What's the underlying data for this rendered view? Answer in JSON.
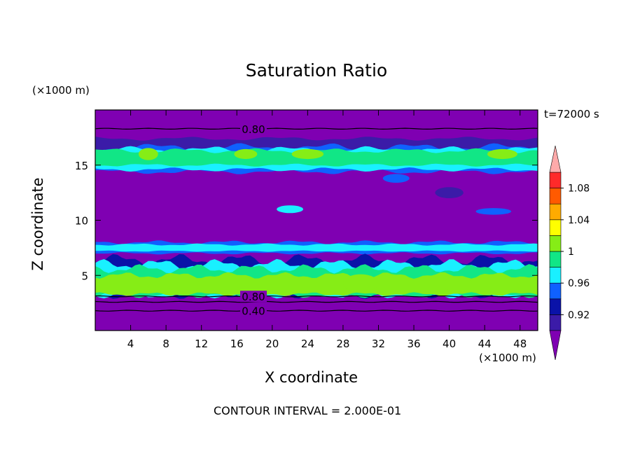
{
  "chart_data": {
    "type": "heatmap",
    "title": "Saturation Ratio",
    "xlabel": "X coordinate",
    "ylabel": "Z coordinate",
    "x_unit": "(×1000 m)",
    "y_unit": "(×1000 m)",
    "time_label": "t=72000 s",
    "footer": "CONTOUR INTERVAL = 2.000E-01",
    "xlim": [
      0,
      50
    ],
    "ylim": [
      0,
      20
    ],
    "x_ticks": [
      4,
      8,
      12,
      16,
      20,
      24,
      28,
      32,
      36,
      40,
      44,
      48
    ],
    "y_ticks": [
      5,
      10,
      15
    ],
    "colorbar": {
      "levels": [
        0.92,
        0.96,
        1,
        1.04,
        1.08
      ],
      "level_labels": [
        "0.92",
        "0.96",
        "1",
        "1.04",
        "1.08"
      ],
      "colors": [
        "#7f00b2",
        "#3b1ba8",
        "#0a12a8",
        "#0f61ff",
        "#19f0ff",
        "#11e686",
        "#86ed16",
        "#ffff00",
        "#ffab00",
        "#ff5a00",
        "#ff2a2a",
        "#ffaaaa"
      ]
    },
    "contour_labels": [
      {
        "text": "0.80",
        "x": 17.8,
        "z": 18.3
      },
      {
        "text": "0.80",
        "x": 17.8,
        "z": 3.1
      },
      {
        "text": "0.40",
        "x": 17.8,
        "z": 1.8
      }
    ],
    "bands": [
      {
        "z0": 0.0,
        "z1": 20.0,
        "level": "<0.92",
        "color": "#7f00b2"
      },
      {
        "z0": 16.4,
        "z1": 17.4,
        "level": "0.92",
        "color": "#3b1ba8"
      },
      {
        "z0": 14.4,
        "z1": 16.6,
        "level": "0.96",
        "color": "#0f61ff"
      },
      {
        "z0": 14.6,
        "z1": 16.4,
        "level": "0.98",
        "color": "#19f0ff"
      },
      {
        "z0": 15.0,
        "z1": 16.3,
        "level": "1",
        "color": "#11e686"
      },
      {
        "z0": 7.0,
        "z1": 8.0,
        "level": "0.96",
        "color": "#0f61ff"
      },
      {
        "z0": 7.2,
        "z1": 7.8,
        "level": "0.98",
        "color": "#19f0ff"
      },
      {
        "z0": 3.2,
        "z1": 6.4,
        "level": "0.92",
        "color": "#0a12a8"
      },
      {
        "z0": 3.2,
        "z1": 6.0,
        "level": "0.98",
        "color": "#19f0ff"
      },
      {
        "z0": 3.2,
        "z1": 5.6,
        "level": "1",
        "color": "#11e686"
      },
      {
        "z0": 3.3,
        "z1": 5.0,
        "level": "1.02",
        "color": "#86ed16"
      }
    ]
  }
}
